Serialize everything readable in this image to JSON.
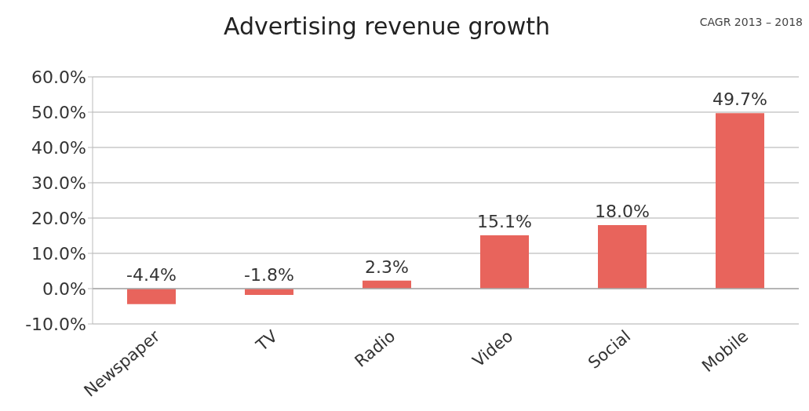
{
  "chart_data": {
    "type": "bar",
    "title": "Advertising revenue growth",
    "subtitle": "CAGR 2013 – 2018",
    "categories": [
      "Newspaper",
      "TV",
      "Radio",
      "Video",
      "Social",
      "Mobile"
    ],
    "values": [
      -4.4,
      -1.8,
      2.3,
      15.1,
      18.0,
      49.7
    ],
    "value_labels": [
      "-4.4%",
      "-1.8%",
      "2.3%",
      "15.1%",
      "18.0%",
      "49.7%"
    ],
    "color": "#e8645c",
    "ylim": [
      -10,
      60
    ],
    "yticks": [
      {
        "value": -10,
        "label": "-10.0%"
      },
      {
        "value": 0,
        "label": "0.0%"
      },
      {
        "value": 10,
        "label": "10.0%"
      },
      {
        "value": 20,
        "label": "20.0%"
      },
      {
        "value": 30,
        "label": "30.0%"
      },
      {
        "value": 40,
        "label": "40.0%"
      },
      {
        "value": 50,
        "label": "50.0%"
      },
      {
        "value": 60,
        "label": "60.0%"
      }
    ],
    "grid": "y"
  }
}
